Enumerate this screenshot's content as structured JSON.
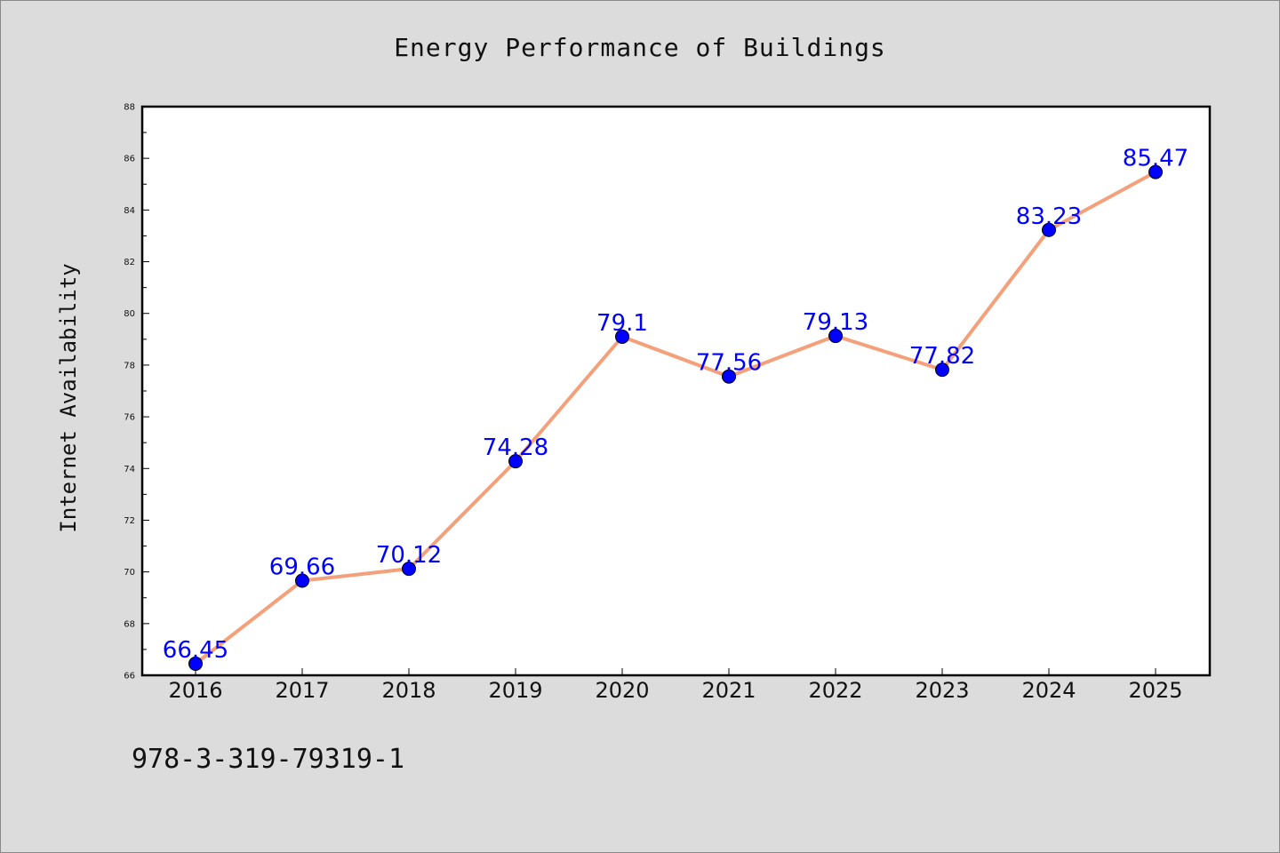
{
  "footer": {
    "isbn": "978-3-319-79319-1"
  },
  "chart_data": {
    "type": "line",
    "title": "Energy Performance of Buildings",
    "xlabel": "",
    "ylabel": "Internet Availability",
    "categories": [
      "2016",
      "2017",
      "2018",
      "2019",
      "2020",
      "2021",
      "2022",
      "2023",
      "2024",
      "2025"
    ],
    "values": [
      66.45,
      69.66,
      70.12,
      74.28,
      79.1,
      77.56,
      79.13,
      77.82,
      83.23,
      85.47
    ],
    "value_labels": [
      "66.45",
      "69.66",
      "70.12",
      "74.28",
      "79.1",
      "77.56",
      "79.13",
      "77.82",
      "83.23",
      "85.47"
    ],
    "ylim": [
      66,
      88
    ],
    "yticks": [
      66,
      68,
      70,
      72,
      74,
      76,
      78,
      80,
      82,
      84,
      86,
      88
    ],
    "grid": false,
    "line_color": "#f4a07a",
    "marker_color": "#0000ff",
    "label_color": "#0000ff",
    "background_color": "#dcdcdc",
    "plot_background": "#ffffff"
  }
}
